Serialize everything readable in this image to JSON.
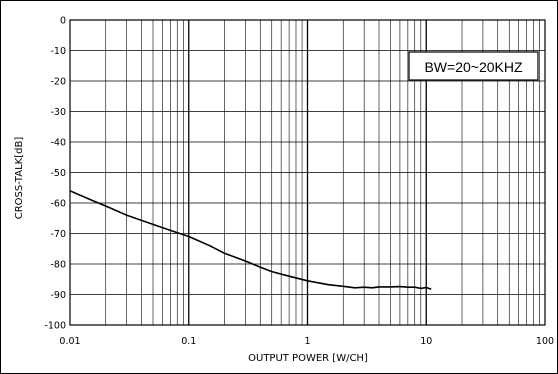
{
  "chart_data": {
    "type": "line",
    "xscale": "log",
    "xlim": [
      0.01,
      100
    ],
    "ylim": [
      -100,
      0
    ],
    "xticks": [
      0.01,
      0.1,
      1,
      10,
      100
    ],
    "xtick_labels": [
      "0.01",
      "0.1",
      "1",
      "10",
      "100"
    ],
    "yticks": [
      0,
      -10,
      -20,
      -30,
      -40,
      -50,
      -60,
      -70,
      -80,
      -90,
      -100
    ],
    "ytick_labels": [
      "0",
      "-10",
      "-20",
      "-30",
      "-40",
      "-50",
      "-60",
      "-70",
      "-80",
      "-90",
      "-100"
    ],
    "xlabel": "OUTPUT POWER [W/CH]",
    "ylabel": "CROSS-TALK[dB]",
    "grid": true,
    "annotation": "BW=20~20KHZ",
    "series": [
      {
        "x": [
          0.01,
          0.015,
          0.02,
          0.03,
          0.05,
          0.07,
          0.1,
          0.15,
          0.2,
          0.3,
          0.4,
          0.5,
          0.7,
          1,
          1.5,
          2,
          2.5,
          3,
          3.5,
          4,
          5,
          6,
          7,
          8,
          9,
          10,
          11
        ],
        "y": [
          -56,
          -59,
          -61,
          -64,
          -67,
          -69,
          -71,
          -74,
          -76.5,
          -79,
          -81,
          -82.5,
          -84,
          -85.5,
          -86.8,
          -87.3,
          -87.8,
          -87.6,
          -87.8,
          -87.5,
          -87.5,
          -87.4,
          -87.6,
          -87.6,
          -88,
          -87.7,
          -88.3
        ]
      }
    ]
  }
}
